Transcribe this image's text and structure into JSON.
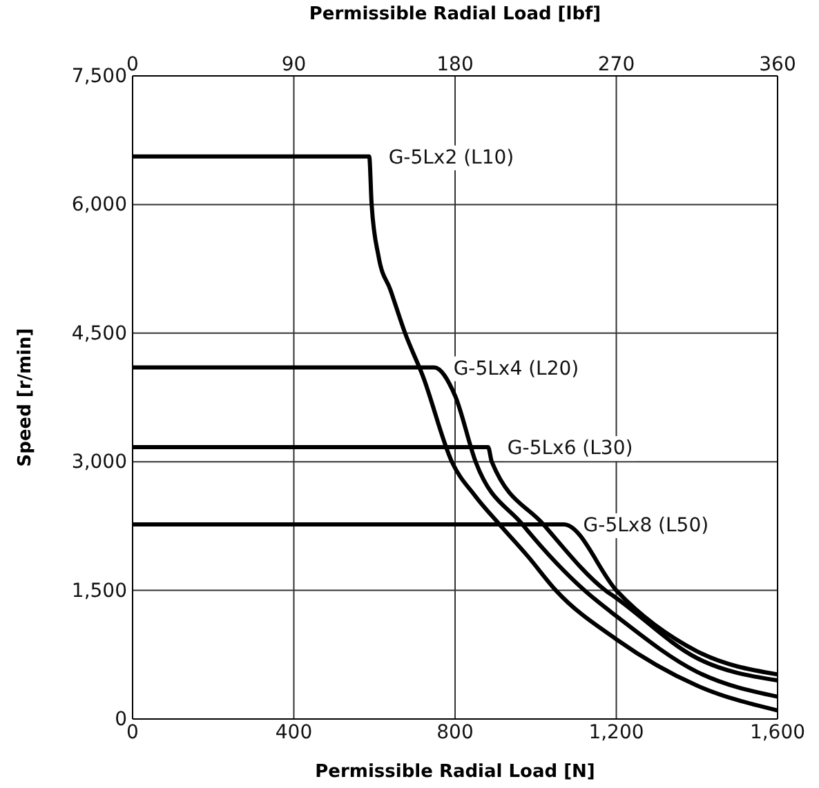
{
  "chart_data": {
    "type": "line",
    "xlabel": "Permissible Radial Load [N]",
    "x2label": "Permissible Radial Load [lbf]",
    "ylabel": "Speed [r/min]",
    "xlim": [
      0,
      1600
    ],
    "xticks": [
      0,
      400,
      800,
      {
        "value": 1200,
        "label": "1,200"
      },
      {
        "value": 1600,
        "label": "1,600"
      }
    ],
    "x2lim": [
      0,
      360
    ],
    "x2ticks": [
      0,
      90,
      180,
      270,
      360
    ],
    "ylim": [
      0,
      7500
    ],
    "yticks": [
      0,
      {
        "value": 1500,
        "label": "1,500"
      },
      {
        "value": 3000,
        "label": "3,000"
      },
      {
        "value": 4500,
        "label": "4,500"
      },
      {
        "value": 6000,
        "label": "6,000"
      },
      {
        "value": 7500,
        "label": "7,500"
      }
    ],
    "grid": true,
    "marker": "none",
    "line_style": "solid",
    "series": [
      {
        "name": "G-5Lx2 (L10)",
        "color": "#000000",
        "x": [
          0,
          587,
          593,
          610,
          640,
          676,
          720,
          792,
          850,
          910,
          980,
          1050,
          1200,
          1400,
          1600
        ],
        "values": [
          6560,
          6560,
          6000,
          5400,
          5000,
          4500,
          4000,
          3000,
          2600,
          2270,
          1900,
          1500,
          930,
          390,
          100
        ]
      },
      {
        "name": "G-5Lx4 (L20)",
        "color": "#000000",
        "x": [
          0,
          748,
          800,
          851,
          967,
          1121,
          1200,
          1400,
          1600
        ],
        "values": [
          4100,
          4100,
          3770,
          3000,
          2270,
          1500,
          1200,
          550,
          260
        ]
      },
      {
        "name": "G-5Lx6 (L30)",
        "color": "#000000",
        "x": [
          0,
          882,
          891,
          1019,
          1173,
          1200,
          1400,
          1600
        ],
        "values": [
          3170,
          3170,
          3000,
          2270,
          1500,
          1410,
          710,
          450
        ]
      },
      {
        "name": "G-5Lx8 (L50)",
        "color": "#000000",
        "x": [
          0,
          1070,
          1202,
          1400,
          1600
        ],
        "values": [
          2270,
          2270,
          1490,
          790,
          520
        ]
      }
    ]
  }
}
